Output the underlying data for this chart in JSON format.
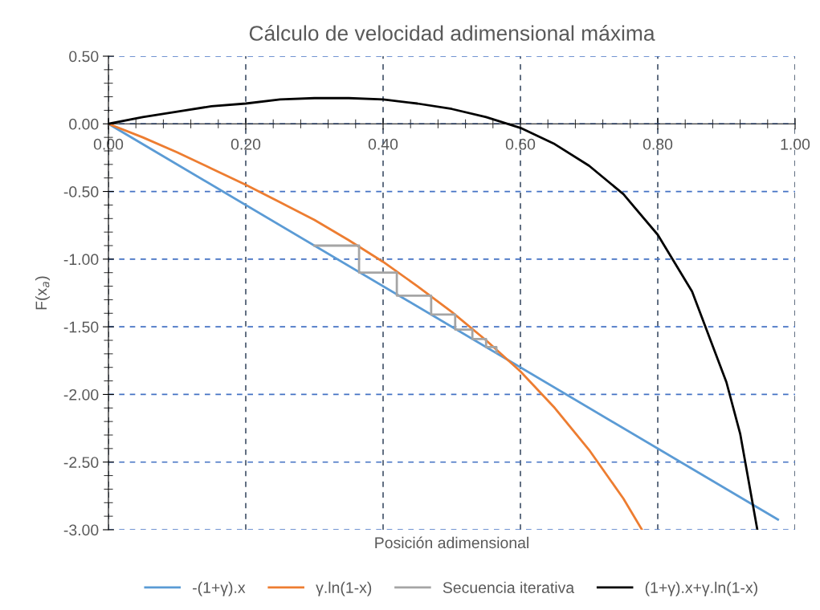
{
  "chart_data": {
    "type": "line",
    "title": "Cálculo de velocidad adimensional máxima",
    "xlabel": "Posición adimensional",
    "ylabel": "F(x$_{a}$)",
    "series": [
      {
        "name": "-(1+γ).x",
        "color": "#5b9bd5",
        "x": [
          0,
          0.975
        ],
        "values": [
          0,
          -2.925
        ]
      },
      {
        "name": "γ.ln(1-x)",
        "color": "#ed7d31",
        "x": [
          0,
          0.05,
          0.1,
          0.15,
          0.2,
          0.25,
          0.3,
          0.35,
          0.4,
          0.45,
          0.5,
          0.55,
          0.6,
          0.65,
          0.7,
          0.75,
          0.777
        ],
        "values": [
          0,
          -0.1,
          -0.21,
          -0.33,
          -0.45,
          -0.58,
          -0.71,
          -0.86,
          -1.02,
          -1.2,
          -1.39,
          -1.6,
          -1.83,
          -2.1,
          -2.41,
          -2.77,
          -3.0
        ]
      },
      {
        "name": "Secuencia iterativa",
        "color": "#a5a5a5",
        "x": [
          0.3,
          0.365,
          0.365,
          0.42,
          0.42,
          0.47,
          0.47,
          0.505,
          0.505,
          0.53,
          0.53,
          0.55,
          0.55,
          0.565,
          0.565
        ],
        "values": [
          -0.9,
          -0.9,
          -1.1,
          -1.1,
          -1.27,
          -1.27,
          -1.41,
          -1.41,
          -1.52,
          -1.52,
          -1.59,
          -1.59,
          -1.65,
          -1.65,
          -1.69
        ]
      },
      {
        "name": "(1+γ).x+γ.ln(1-x)",
        "color": "#000000",
        "x": [
          0,
          0.05,
          0.1,
          0.15,
          0.2,
          0.25,
          0.3,
          0.35,
          0.4,
          0.45,
          0.5,
          0.55,
          0.6,
          0.65,
          0.7,
          0.75,
          0.8,
          0.85,
          0.9,
          0.92,
          0.945
        ],
        "values": [
          0,
          0.05,
          0.09,
          0.13,
          0.15,
          0.18,
          0.19,
          0.19,
          0.18,
          0.15,
          0.11,
          0.05,
          -0.03,
          -0.15,
          -0.31,
          -0.52,
          -0.82,
          -1.24,
          -1.91,
          -2.29,
          -3.0
        ]
      }
    ],
    "xlim": [
      0,
      1
    ],
    "ylim": [
      -3,
      0.5
    ],
    "xticks": [
      {
        "value": 0,
        "label": "0.00"
      },
      {
        "value": 0.04,
        "label": null
      },
      {
        "value": 0.08,
        "label": null
      },
      {
        "value": 0.12,
        "label": null
      },
      {
        "value": 0.16,
        "label": null
      },
      {
        "value": 0.2,
        "label": "0.20"
      },
      {
        "value": 0.24,
        "label": null
      },
      {
        "value": 0.28,
        "label": null
      },
      {
        "value": 0.32,
        "label": null
      },
      {
        "value": 0.36,
        "label": null
      },
      {
        "value": 0.4,
        "label": "0.40"
      },
      {
        "value": 0.44,
        "label": null
      },
      {
        "value": 0.48,
        "label": null
      },
      {
        "value": 0.52,
        "label": null
      },
      {
        "value": 0.56,
        "label": null
      },
      {
        "value": 0.6,
        "label": "0.60"
      },
      {
        "value": 0.64,
        "label": null
      },
      {
        "value": 0.68,
        "label": null
      },
      {
        "value": 0.72,
        "label": null
      },
      {
        "value": 0.76,
        "label": null
      },
      {
        "value": 0.8,
        "label": "0.80"
      },
      {
        "value": 0.84,
        "label": null
      },
      {
        "value": 0.88,
        "label": null
      },
      {
        "value": 0.92,
        "label": null
      },
      {
        "value": 0.96,
        "label": null
      },
      {
        "value": 1,
        "label": "1.00"
      }
    ],
    "yticks": [
      {
        "value": 0.5,
        "label": "0.50"
      },
      {
        "value": 0.4,
        "label": null
      },
      {
        "value": 0.3,
        "label": null
      },
      {
        "value": 0.2,
        "label": null
      },
      {
        "value": 0.1,
        "label": null
      },
      {
        "value": 0,
        "label": "0.00"
      },
      {
        "value": -0.1,
        "label": null
      },
      {
        "value": -0.2,
        "label": null
      },
      {
        "value": -0.3,
        "label": null
      },
      {
        "value": -0.4,
        "label": null
      },
      {
        "value": -0.5,
        "label": "-0.50"
      },
      {
        "value": -0.6,
        "label": null
      },
      {
        "value": -0.7,
        "label": null
      },
      {
        "value": -0.8,
        "label": null
      },
      {
        "value": -0.9,
        "label": null
      },
      {
        "value": -1,
        "label": "-1.00"
      },
      {
        "value": -1.1,
        "label": null
      },
      {
        "value": -1.2,
        "label": null
      },
      {
        "value": -1.3,
        "label": null
      },
      {
        "value": -1.4,
        "label": null
      },
      {
        "value": -1.5,
        "label": "-1.50"
      },
      {
        "value": -1.6,
        "label": null
      },
      {
        "value": -1.7,
        "label": null
      },
      {
        "value": -1.8,
        "label": null
      },
      {
        "value": -1.9,
        "label": null
      },
      {
        "value": -2,
        "label": "-2.00"
      },
      {
        "value": -2.1,
        "label": null
      },
      {
        "value": -2.2,
        "label": null
      },
      {
        "value": -2.3,
        "label": null
      },
      {
        "value": -2.4,
        "label": null
      },
      {
        "value": -2.5,
        "label": "-2.50"
      },
      {
        "value": -2.6,
        "label": null
      },
      {
        "value": -2.7,
        "label": null
      },
      {
        "value": -2.8,
        "label": null
      },
      {
        "value": -2.9,
        "label": null
      },
      {
        "value": -3,
        "label": "-3.00"
      }
    ],
    "grid": true,
    "legend": "bottom",
    "marker": "none",
    "line_style": "solid"
  }
}
